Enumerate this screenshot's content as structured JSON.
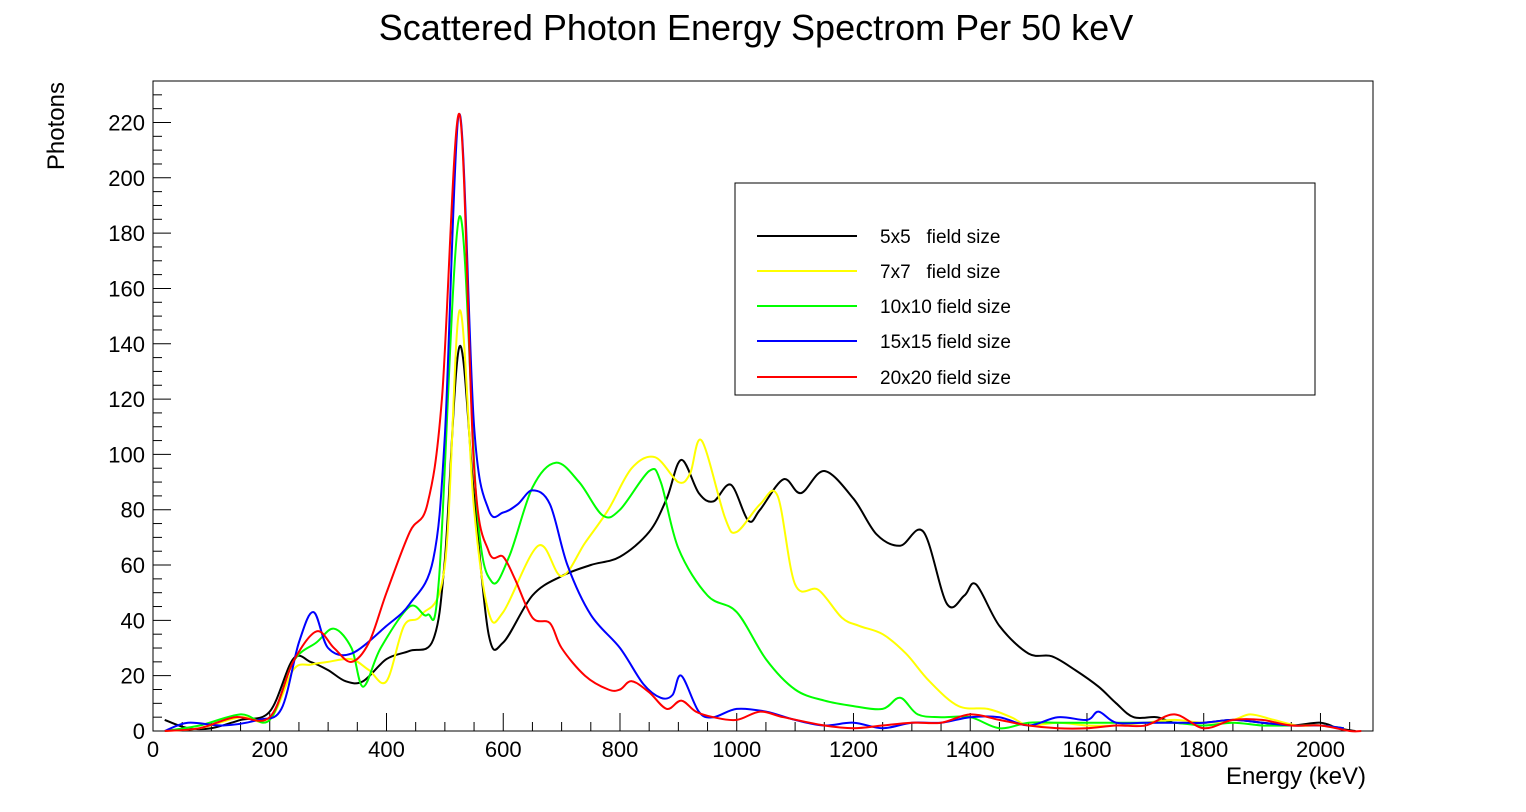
{
  "chart_data": {
    "type": "line",
    "title": "Scattered Photon Energy Spectrom Per 50 keV",
    "xlabel": "Energy (keV)",
    "ylabel": "Photons",
    "xlim": [
      0,
      2090
    ],
    "ylim": [
      0,
      235
    ],
    "x_ticks": [
      0,
      200,
      400,
      600,
      800,
      1000,
      1200,
      1400,
      1600,
      1800,
      2000
    ],
    "y_ticks": [
      0,
      20,
      40,
      60,
      80,
      100,
      120,
      140,
      160,
      180,
      200,
      220
    ],
    "grid": false,
    "legend_position": "top-right",
    "series": [
      {
        "name": "5x5   field size",
        "color": "#000000",
        "x": [
          20,
          60,
          100,
          150,
          200,
          240,
          270,
          300,
          330,
          360,
          400,
          440,
          480,
          500,
          525,
          550,
          575,
          600,
          650,
          700,
          750,
          800,
          850,
          880,
          905,
          935,
          960,
          990,
          1020,
          1040,
          1080,
          1110,
          1150,
          1200,
          1240,
          1280,
          1320,
          1360,
          1390,
          1410,
          1450,
          1500,
          1540,
          1580,
          1620,
          1650,
          1680,
          1720,
          1750,
          1800,
          1850,
          1900,
          1950,
          2000,
          2030,
          2060
        ],
        "y": [
          4,
          1,
          1,
          4,
          7,
          26,
          25,
          22,
          18,
          18,
          26,
          29,
          33,
          62,
          139,
          85,
          35,
          32,
          49,
          56,
          60,
          63,
          72,
          84,
          98,
          86,
          83,
          89,
          76,
          80,
          91,
          86,
          94,
          84,
          71,
          67,
          72,
          46,
          49,
          53,
          38,
          28,
          27,
          22,
          16,
          10,
          5,
          5,
          3,
          3,
          4,
          3,
          2,
          3,
          1,
          0
        ]
      },
      {
        "name": "7x7   field size",
        "color": "#ffff00",
        "x": [
          20,
          80,
          150,
          200,
          240,
          270,
          300,
          340,
          370,
          400,
          430,
          460,
          500,
          525,
          550,
          575,
          600,
          660,
          700,
          740,
          780,
          820,
          860,
          900,
          920,
          940,
          980,
          1000,
          1040,
          1070,
          1100,
          1140,
          1180,
          1210,
          1250,
          1290,
          1330,
          1380,
          1430,
          1470,
          1500,
          1550,
          1600,
          1650,
          1700,
          1750,
          1800,
          1850,
          1880,
          1920,
          1960,
          2000,
          2040
        ],
        "y": [
          0,
          1,
          5,
          4,
          22,
          24,
          25,
          26,
          22,
          18,
          38,
          42,
          60,
          152,
          80,
          43,
          43,
          67,
          56,
          68,
          80,
          95,
          99,
          90,
          93,
          105,
          77,
          72,
          82,
          85,
          53,
          51,
          41,
          38,
          35,
          28,
          18,
          9,
          8,
          5,
          2,
          3,
          2,
          2,
          3,
          4,
          3,
          4,
          6,
          4,
          2,
          2,
          1
        ]
      },
      {
        "name": "10x10 field size",
        "color": "#00ff00",
        "x": [
          20,
          80,
          150,
          200,
          240,
          280,
          310,
          340,
          360,
          390,
          440,
          470,
          490,
          525,
          555,
          580,
          610,
          650,
          690,
          730,
          770,
          800,
          850,
          870,
          900,
          950,
          1000,
          1050,
          1100,
          1150,
          1200,
          1250,
          1280,
          1310,
          1350,
          1400,
          1450,
          1500,
          1550,
          1600,
          1650,
          1700,
          1750,
          1800,
          1850,
          1900,
          1950,
          2000,
          2040
        ],
        "y": [
          0,
          2,
          6,
          4,
          25,
          32,
          37,
          30,
          16,
          30,
          45,
          42,
          55,
          186,
          80,
          54,
          63,
          88,
          97,
          90,
          78,
          80,
          94,
          90,
          66,
          49,
          43,
          26,
          15,
          11,
          9,
          8,
          12,
          6,
          5,
          5,
          1,
          3,
          3,
          3,
          3,
          3,
          3,
          2,
          3,
          2,
          2,
          2,
          1
        ]
      },
      {
        "name": "15x15 field size",
        "color": "#0000ff",
        "x": [
          20,
          60,
          120,
          180,
          220,
          250,
          275,
          300,
          340,
          400,
          440,
          480,
          500,
          525,
          550,
          575,
          600,
          625,
          650,
          680,
          710,
          750,
          800,
          840,
          870,
          890,
          905,
          935,
          960,
          1000,
          1050,
          1100,
          1150,
          1200,
          1250,
          1300,
          1350,
          1400,
          1450,
          1500,
          1550,
          1600,
          1620,
          1650,
          1700,
          1750,
          1800,
          1850,
          1900,
          1950,
          2000,
          2040
        ],
        "y": [
          0,
          3,
          2,
          4,
          8,
          32,
          43,
          30,
          28,
          38,
          46,
          62,
          107,
          223,
          110,
          80,
          79,
          82,
          87,
          82,
          60,
          42,
          30,
          17,
          12,
          13,
          20,
          7,
          5,
          8,
          7,
          4,
          2,
          3,
          1,
          3,
          3,
          5,
          5,
          2,
          5,
          4,
          7,
          3,
          3,
          3,
          3,
          4,
          3,
          2,
          2,
          1
        ]
      },
      {
        "name": "20x20 field size",
        "color": "#ff0000",
        "x": [
          20,
          80,
          140,
          200,
          240,
          280,
          310,
          340,
          370,
          400,
          440,
          470,
          495,
          525,
          550,
          575,
          600,
          620,
          650,
          680,
          700,
          740,
          780,
          800,
          820,
          850,
          880,
          905,
          930,
          960,
          1000,
          1040,
          1080,
          1150,
          1200,
          1250,
          1300,
          1350,
          1400,
          1450,
          1500,
          1550,
          1600,
          1650,
          1700,
          1750,
          1800,
          1850,
          1900,
          1950,
          2000,
          2050,
          2070
        ],
        "y": [
          0,
          1,
          5,
          5,
          25,
          36,
          30,
          25,
          32,
          50,
          72,
          82,
          120,
          223,
          95,
          65,
          63,
          55,
          41,
          39,
          30,
          20,
          15,
          15,
          18,
          14,
          8,
          11,
          7,
          5,
          4,
          7,
          5,
          2,
          1,
          2,
          3,
          3,
          6,
          4,
          2,
          1,
          1,
          2,
          2,
          6,
          1,
          4,
          4,
          2,
          2,
          0,
          0
        ]
      }
    ]
  }
}
